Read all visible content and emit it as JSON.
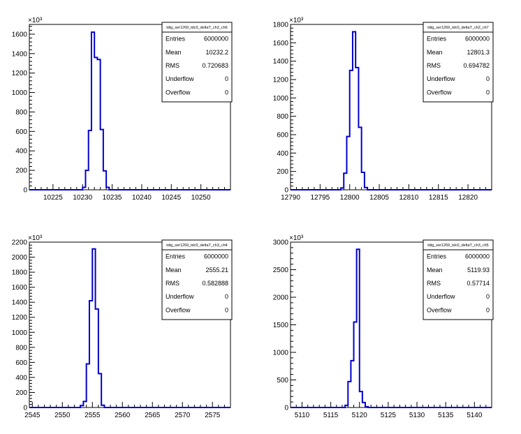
{
  "chart_data": [
    {
      "type": "histogram",
      "title": "tdig_ser1269_tdc0_deltaT_ch2_ch6",
      "y_multiplier_label": "×10³",
      "xlim": [
        10221,
        10255
      ],
      "ylim": [
        0,
        1700
      ],
      "xticks": [
        10225,
        10230,
        10235,
        10240,
        10245,
        10250
      ],
      "yticks": [
        0,
        200,
        400,
        600,
        800,
        1000,
        1200,
        1400,
        1600
      ],
      "bin_width": 0.5,
      "bins": [
        {
          "x": 10230.0,
          "y": 25
        },
        {
          "x": 10230.5,
          "y": 200
        },
        {
          "x": 10231.0,
          "y": 610
        },
        {
          "x": 10231.5,
          "y": 1620
        },
        {
          "x": 10232.0,
          "y": 1360
        },
        {
          "x": 10232.5,
          "y": 1340
        },
        {
          "x": 10233.0,
          "y": 620
        },
        {
          "x": 10233.5,
          "y": 195
        },
        {
          "x": 10234.0,
          "y": 25
        }
      ],
      "stats": [
        {
          "label": "Entries",
          "value": "6000000"
        },
        {
          "label": "Mean",
          "value": "10232.2"
        },
        {
          "label": "RMS",
          "value": "0.720683"
        },
        {
          "label": "Underflow",
          "value": "0"
        },
        {
          "label": "Overflow",
          "value": "0"
        }
      ],
      "color": "#0000cc"
    },
    {
      "type": "histogram",
      "title": "tdig_ser1269_tdc0_deltaT_ch2_ch7",
      "y_multiplier_label": "×10³",
      "xlim": [
        12790,
        12824
      ],
      "ylim": [
        0,
        1800
      ],
      "xticks": [
        12790,
        12795,
        12800,
        12805,
        12810,
        12815,
        12820
      ],
      "yticks": [
        0,
        200,
        400,
        600,
        800,
        1000,
        1200,
        1400,
        1600,
        1800
      ],
      "bin_width": 0.5,
      "bins": [
        {
          "x": 12798.5,
          "y": 20
        },
        {
          "x": 12799.0,
          "y": 180
        },
        {
          "x": 12799.5,
          "y": 580
        },
        {
          "x": 12800.0,
          "y": 1300
        },
        {
          "x": 12800.5,
          "y": 1720
        },
        {
          "x": 12801.0,
          "y": 1330
        },
        {
          "x": 12801.5,
          "y": 680
        },
        {
          "x": 12802.0,
          "y": 190
        },
        {
          "x": 12802.5,
          "y": 25
        }
      ],
      "stats": [
        {
          "label": "Entries",
          "value": "6000000"
        },
        {
          "label": "Mean",
          "value": "12801.3"
        },
        {
          "label": "RMS",
          "value": "0.694782"
        },
        {
          "label": "Underflow",
          "value": "0"
        },
        {
          "label": "Overflow",
          "value": "0"
        }
      ],
      "color": "#0000cc"
    },
    {
      "type": "histogram",
      "title": "tdig_ser1269_tdc0_deltaT_ch3_ch4",
      "y_multiplier_label": "×10³",
      "xlim": [
        2544.5,
        2578
      ],
      "ylim": [
        0,
        2200
      ],
      "xticks": [
        2545,
        2550,
        2555,
        2560,
        2565,
        2570,
        2575
      ],
      "yticks": [
        0,
        200,
        400,
        600,
        800,
        1000,
        1200,
        1400,
        1600,
        1800,
        2000,
        2200
      ],
      "bin_width": 0.5,
      "bins": [
        {
          "x": 2553.0,
          "y": 25
        },
        {
          "x": 2553.5,
          "y": 80
        },
        {
          "x": 2554.0,
          "y": 580
        },
        {
          "x": 2554.5,
          "y": 1420
        },
        {
          "x": 2555.0,
          "y": 2110
        },
        {
          "x": 2555.5,
          "y": 1310
        },
        {
          "x": 2556.0,
          "y": 450
        },
        {
          "x": 2556.5,
          "y": 30
        }
      ],
      "stats": [
        {
          "label": "Entries",
          "value": "6000000"
        },
        {
          "label": "Mean",
          "value": "2555.21"
        },
        {
          "label": "RMS",
          "value": "0.582888"
        },
        {
          "label": "Underflow",
          "value": "0"
        },
        {
          "label": "Overflow",
          "value": "0"
        }
      ],
      "color": "#0000cc"
    },
    {
      "type": "histogram",
      "title": "tdig_ser1269_tdc0_deltaT_ch3_ch5",
      "y_multiplier_label": "×10³",
      "xlim": [
        5108,
        5143
      ],
      "ylim": [
        0,
        3000
      ],
      "xticks": [
        5110,
        5115,
        5120,
        5125,
        5130,
        5135,
        5140
      ],
      "yticks": [
        0,
        500,
        1000,
        1500,
        2000,
        2500,
        3000
      ],
      "bin_width": 0.5,
      "bins": [
        {
          "x": 5117.5,
          "y": 40
        },
        {
          "x": 5118.0,
          "y": 470
        },
        {
          "x": 5118.5,
          "y": 850
        },
        {
          "x": 5119.0,
          "y": 1550
        },
        {
          "x": 5119.5,
          "y": 2870
        },
        {
          "x": 5120.0,
          "y": 290
        },
        {
          "x": 5120.5,
          "y": 90
        },
        {
          "x": 5121.0,
          "y": 15
        }
      ],
      "stats": [
        {
          "label": "Entries",
          "value": "6000000"
        },
        {
          "label": "Mean",
          "value": "5119.93"
        },
        {
          "label": "RMS",
          "value": "0.57714"
        },
        {
          "label": "Underflow",
          "value": "0"
        },
        {
          "label": "Overflow",
          "value": "0"
        }
      ],
      "color": "#0000cc"
    }
  ]
}
